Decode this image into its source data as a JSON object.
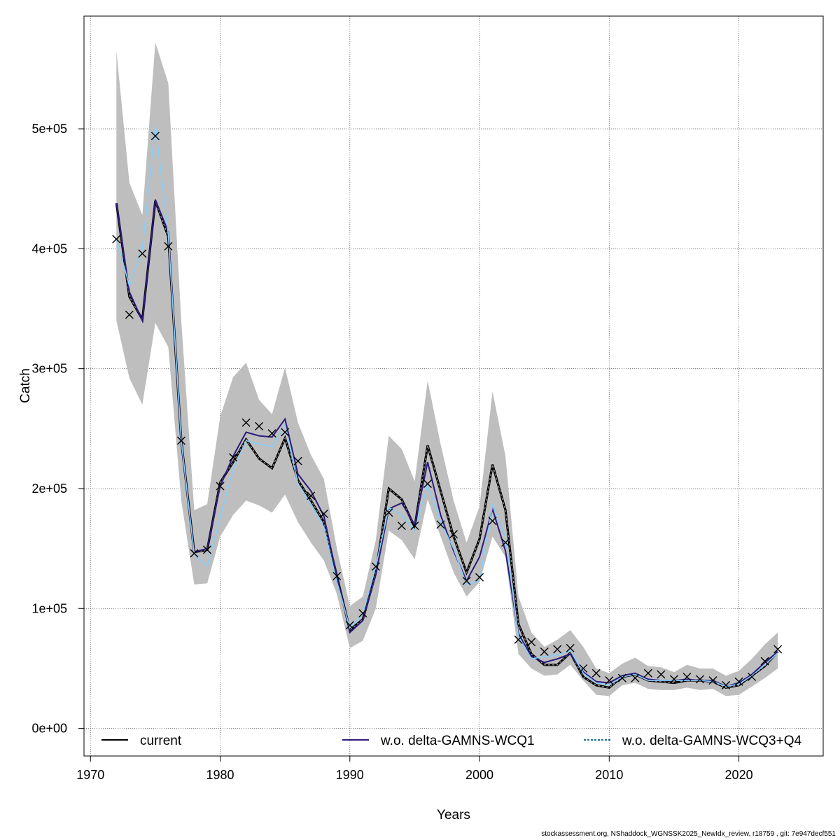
{
  "chart_data": {
    "type": "line",
    "xlabel": "Years",
    "ylabel": "Catch",
    "xlim": [
      1969.5,
      2026.5
    ],
    "ylim": [
      -23000,
      594000
    ],
    "x_ticks": [
      1970,
      1980,
      1990,
      2000,
      2010,
      2020
    ],
    "y_ticks": [
      {
        "value": 0,
        "label": "0e+00"
      },
      {
        "value": 100000,
        "label": "1e+05"
      },
      {
        "value": 200000,
        "label": "2e+05"
      },
      {
        "value": 300000,
        "label": "3e+05"
      },
      {
        "value": 400000,
        "label": "4e+05"
      },
      {
        "value": 500000,
        "label": "5e+05"
      }
    ],
    "grid": true,
    "legend_position": "bottom",
    "x": [
      1972,
      1973,
      1974,
      1975,
      1976,
      1977,
      1978,
      1979,
      1980,
      1981,
      1982,
      1983,
      1984,
      1985,
      1986,
      1987,
      1988,
      1989,
      1990,
      1991,
      1992,
      1993,
      1994,
      1995,
      1996,
      1997,
      1998,
      1999,
      2000,
      2001,
      2002,
      2003,
      2004,
      2005,
      2006,
      2007,
      2008,
      2009,
      2010,
      2011,
      2012,
      2013,
      2014,
      2015,
      2016,
      2017,
      2018,
      2019,
      2020,
      2021,
      2022,
      2023
    ],
    "ribbon": {
      "color": "#bebebe",
      "lower": [
        340000,
        292000,
        270000,
        338000,
        318000,
        190000,
        120000,
        121000,
        160000,
        178000,
        190000,
        186000,
        180000,
        195000,
        172000,
        155000,
        140000,
        112000,
        67000,
        73000,
        100000,
        165000,
        157000,
        141000,
        191000,
        160000,
        130000,
        110000,
        122000,
        160000,
        143000,
        62000,
        50000,
        44000,
        45000,
        53000,
        40000,
        28000,
        27000,
        36000,
        38000,
        33000,
        32000,
        32000,
        34000,
        32000,
        33000,
        27000,
        28000,
        35000,
        42000,
        50000
      ],
      "upper": [
        565000,
        455000,
        428000,
        572000,
        538000,
        340000,
        182000,
        187000,
        260000,
        293000,
        305000,
        274000,
        262000,
        301000,
        255000,
        228000,
        208000,
        150000,
        102000,
        110000,
        157000,
        244000,
        233000,
        206000,
        290000,
        237000,
        190000,
        155000,
        185000,
        281000,
        227000,
        110000,
        80000,
        68000,
        74000,
        82000,
        68000,
        50000,
        46000,
        54000,
        59000,
        52000,
        51000,
        47000,
        53000,
        50000,
        50000,
        44000,
        48000,
        58000,
        70000,
        80000
      ]
    },
    "series": [
      {
        "name": "current",
        "color": "#000000",
        "style": "dashed",
        "values": [
          438000,
          360000,
          341000,
          440000,
          410000,
          240000,
          147000,
          149000,
          205000,
          222000,
          241000,
          225000,
          217000,
          242000,
          207000,
          190000,
          172000,
          127000,
          82000,
          91000,
          130000,
          200000,
          191000,
          168000,
          236000,
          198000,
          160000,
          130000,
          158000,
          220000,
          182000,
          87000,
          62000,
          53000,
          53000,
          63000,
          43000,
          36000,
          34000,
          43000,
          45000,
          40000,
          39000,
          38000,
          40000,
          40000,
          39000,
          34000,
          36000,
          44000,
          52000,
          64000
        ]
      },
      {
        "name": "w.o. delta-GAMNS-WCQ1",
        "color": "#2e1a7c",
        "style": "solid",
        "values": [
          438000,
          364000,
          340000,
          441000,
          414000,
          238000,
          147000,
          150000,
          202000,
          227000,
          247000,
          244000,
          243000,
          258000,
          212000,
          198000,
          177000,
          127000,
          80000,
          90000,
          128000,
          183000,
          188000,
          170000,
          222000,
          178000,
          148000,
          123000,
          143000,
          183000,
          148000,
          79000,
          60000,
          55000,
          58000,
          62000,
          47000,
          39000,
          38000,
          44000,
          46000,
          41000,
          40000,
          40000,
          41000,
          40000,
          40000,
          35000,
          38000,
          45000,
          55000,
          64000
        ]
      },
      {
        "name": "w.o. delta-GAMNS-WCQ3+Q4",
        "color": "#87cefa",
        "style": "solid",
        "values": [
          408000,
          369000,
          400000,
          503000,
          412000,
          240000,
          145000,
          135000,
          176000,
          216000,
          240000,
          237000,
          235000,
          253000,
          204000,
          186000,
          168000,
          122000,
          84000,
          95000,
          135000,
          184000,
          178000,
          165000,
          203000,
          172000,
          150000,
          120000,
          123000,
          186000,
          160000,
          77000,
          58000,
          60000,
          61000,
          65000,
          46000,
          38000,
          36000,
          43000,
          45000,
          40000,
          40000,
          40000,
          40000,
          40000,
          39000,
          35000,
          37000,
          44000,
          53000,
          63000
        ]
      }
    ],
    "observed": {
      "marker": "x",
      "color": "#000000",
      "values": [
        408000,
        345000,
        396000,
        494000,
        402000,
        240000,
        146000,
        149000,
        202000,
        226000,
        255000,
        252000,
        246000,
        247000,
        223000,
        194000,
        179000,
        127000,
        86000,
        96000,
        135000,
        180000,
        169000,
        169000,
        204000,
        170000,
        162000,
        123000,
        126000,
        173000,
        155000,
        74000,
        72000,
        64000,
        66000,
        67000,
        50000,
        46000,
        40000,
        42000,
        42000,
        46000,
        45000,
        41000,
        43000,
        41000,
        40000,
        36000,
        39000,
        43000,
        56000,
        66000
      ]
    }
  },
  "footer": "stockassessment.org, NShaddock_WGNSSK2025_NewIdx_review, r18759 , git: 7e947decf551"
}
